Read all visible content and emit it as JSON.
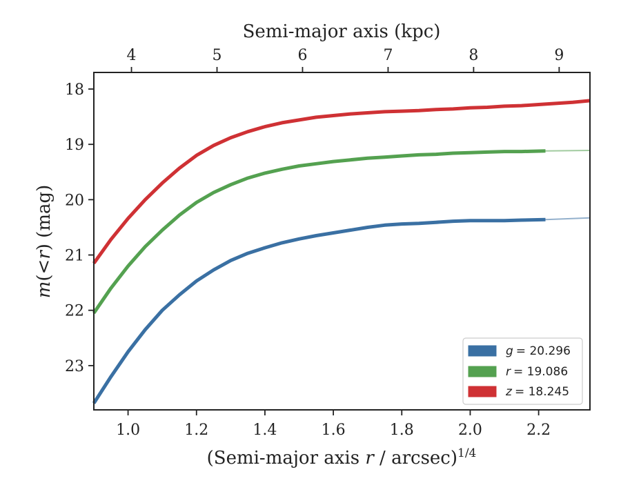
{
  "chart_data": {
    "type": "line",
    "title": "",
    "xlabel": "(Semi-major axis r / arcsec)^1/4",
    "xlabel_parts": {
      "prefix": "(Semi-major axis ",
      "var": "r",
      "mid": " / arcsec)",
      "sup": "1/4"
    },
    "ylabel": "m(<r) (mag)",
    "ylabel_parts": {
      "var": "m",
      "mid": "(<",
      "var2": "r",
      "end": ") (mag)"
    },
    "top_xlabel": "Semi-major axis (kpc)",
    "xlim": [
      0.9,
      2.35
    ],
    "ylim": [
      23.8,
      17.7
    ],
    "y_inverted": true,
    "x_ticks": [
      "1.0",
      "1.2",
      "1.4",
      "1.6",
      "1.8",
      "2.0",
      "2.2"
    ],
    "y_ticks": [
      "18",
      "19",
      "20",
      "21",
      "22",
      "23"
    ],
    "top_ticks": [
      "4",
      "5",
      "6",
      "7",
      "8",
      "9"
    ],
    "top_tick_x": [
      1.01,
      1.26,
      1.51,
      1.76,
      2.01,
      2.26
    ],
    "legend_position": "lower-right",
    "series": [
      {
        "name": "g = 20.296",
        "label_var": "g",
        "label_value": "= 20.296",
        "color": "#3a70a3",
        "x": [
          0.9,
          0.95,
          1.0,
          1.05,
          1.1,
          1.15,
          1.2,
          1.25,
          1.3,
          1.35,
          1.4,
          1.45,
          1.5,
          1.55,
          1.6,
          1.65,
          1.7,
          1.75,
          1.8,
          1.85,
          1.9,
          1.95,
          2.0,
          2.05,
          2.1,
          2.15,
          2.22
        ],
        "y": [
          23.68,
          23.2,
          22.75,
          22.35,
          22.0,
          21.72,
          21.47,
          21.27,
          21.1,
          20.97,
          20.87,
          20.78,
          20.71,
          20.65,
          20.6,
          20.55,
          20.5,
          20.46,
          20.44,
          20.43,
          20.41,
          20.39,
          20.38,
          20.38,
          20.38,
          20.37,
          20.36
        ],
        "ext_x": [
          2.22,
          2.35
        ],
        "ext_y": [
          20.36,
          20.33
        ]
      },
      {
        "name": "r = 19.086",
        "label_var": "r",
        "label_value": "= 19.086",
        "color": "#54a150",
        "x": [
          0.9,
          0.95,
          1.0,
          1.05,
          1.1,
          1.15,
          1.2,
          1.25,
          1.3,
          1.35,
          1.4,
          1.45,
          1.5,
          1.55,
          1.6,
          1.65,
          1.7,
          1.75,
          1.8,
          1.85,
          1.9,
          1.95,
          2.0,
          2.05,
          2.1,
          2.15,
          2.22
        ],
        "y": [
          22.05,
          21.6,
          21.2,
          20.85,
          20.55,
          20.28,
          20.05,
          19.87,
          19.73,
          19.61,
          19.52,
          19.45,
          19.39,
          19.35,
          19.31,
          19.28,
          19.25,
          19.23,
          19.21,
          19.19,
          19.18,
          19.16,
          19.15,
          19.14,
          19.13,
          19.13,
          19.12
        ],
        "ext_x": [
          2.22,
          2.35
        ],
        "ext_y": [
          19.12,
          19.11
        ]
      },
      {
        "name": "z = 18.245",
        "label_var": "z",
        "label_value": "= 18.245",
        "color": "#cf3134",
        "x": [
          0.9,
          0.95,
          1.0,
          1.05,
          1.1,
          1.15,
          1.2,
          1.25,
          1.3,
          1.35,
          1.4,
          1.45,
          1.5,
          1.55,
          1.6,
          1.65,
          1.7,
          1.75,
          1.8,
          1.85,
          1.9,
          1.95,
          2.0,
          2.05,
          2.1,
          2.15,
          2.2,
          2.25,
          2.3,
          2.35
        ],
        "y": [
          21.15,
          20.72,
          20.34,
          20.0,
          19.7,
          19.43,
          19.2,
          19.02,
          18.88,
          18.77,
          18.68,
          18.61,
          18.56,
          18.51,
          18.48,
          18.45,
          18.43,
          18.41,
          18.4,
          18.39,
          18.37,
          18.36,
          18.34,
          18.33,
          18.31,
          18.3,
          18.28,
          18.26,
          18.24,
          18.21
        ]
      }
    ]
  }
}
